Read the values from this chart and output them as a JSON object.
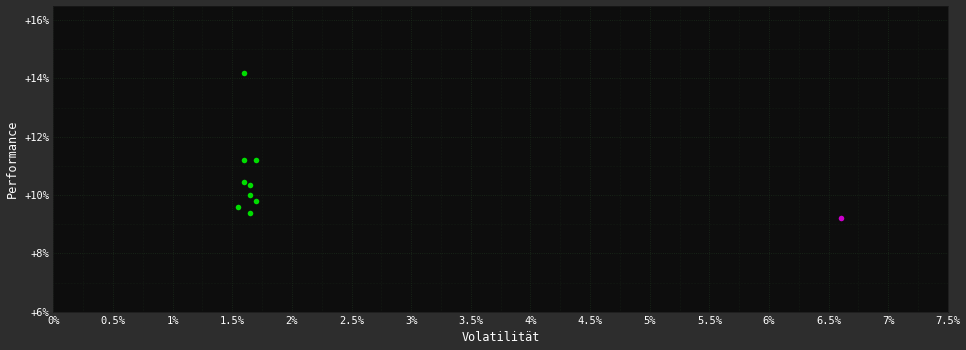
{
  "background_color": "#2d2d2d",
  "plot_bg_color": "#0d0d0d",
  "grid_color": "#1a2a1a",
  "text_color": "#ffffff",
  "xlabel": "Volatilität",
  "ylabel": "Performance",
  "xlim": [
    0.0,
    0.075
  ],
  "ylim": [
    0.06,
    0.165
  ],
  "xticks": [
    0.0,
    0.005,
    0.01,
    0.015,
    0.02,
    0.025,
    0.03,
    0.035,
    0.04,
    0.045,
    0.05,
    0.055,
    0.06,
    0.065,
    0.07,
    0.075
  ],
  "xtick_labels": [
    "0%",
    "0.5%",
    "1%",
    "1.5%",
    "2%",
    "2.5%",
    "3%",
    "3.5%",
    "4%",
    "4.5%",
    "5%",
    "5.5%",
    "6%",
    "6.5%",
    "7%",
    "7.5%"
  ],
  "yticks": [
    0.06,
    0.08,
    0.1,
    0.12,
    0.14,
    0.16
  ],
  "ytick_labels": [
    "+6%",
    "+8%",
    "+10%",
    "+12%",
    "+14%",
    "+16%"
  ],
  "green_points": [
    [
      0.016,
      0.142
    ],
    [
      0.016,
      0.112
    ],
    [
      0.017,
      0.112
    ],
    [
      0.016,
      0.1045
    ],
    [
      0.0165,
      0.1035
    ],
    [
      0.0165,
      0.1
    ],
    [
      0.017,
      0.098
    ],
    [
      0.0155,
      0.096
    ],
    [
      0.0165,
      0.094
    ]
  ],
  "magenta_points": [
    [
      0.066,
      0.092
    ]
  ],
  "green_color": "#00dd00",
  "magenta_color": "#cc00cc",
  "marker_size": 4
}
